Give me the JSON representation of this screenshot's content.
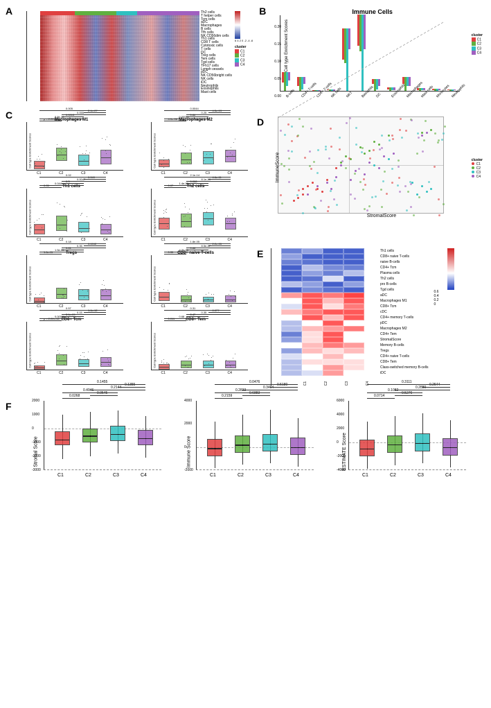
{
  "colors": {
    "C1": "#e04040",
    "C2": "#60b040",
    "C3": "#30c0c0",
    "C4": "#a060c0",
    "heatmap_high": "#c02020",
    "heatmap_mid": "#ffffff",
    "heatmap_low": "#2040a0"
  },
  "panelA": {
    "label": "A",
    "cluster_bar_widths": [
      50,
      60,
      30,
      90
    ],
    "colorbar_ticks": [
      "6",
      "4",
      "2",
      "0",
      "-2",
      "-4",
      "-6"
    ],
    "legend_title_cluster": "cluster",
    "legend_clusters": [
      "C1",
      "C2",
      "C3",
      "C4"
    ],
    "row_labels": [
      "Th2 cells",
      "T helper cells",
      "Tcm cells",
      "aDC",
      "Macrophages",
      "B cells",
      "Tfh cells",
      "NK CD56dim cells",
      "Th1 cells",
      "CD8 T cells",
      "Cytotoxic cells",
      "T cells",
      "DC",
      "Treg cells",
      "Tem cells",
      "Tgd cells",
      "TFh17 cells",
      "Lymph vessels",
      "pDC",
      "NK CD56bright cells",
      "NK cells",
      "iDC",
      "Neutrophils",
      "Eosinophils",
      "Mast cells"
    ]
  },
  "panelB": {
    "label": "B",
    "title": "Immune Cells",
    "ylabel": "Cell type Enrichment Scores",
    "ylim": [
      0,
      0.22
    ],
    "yticks": [
      0.0,
      0.05,
      0.1,
      0.15,
      0.2
    ],
    "categories": [
      "B-cells",
      "CD4+ T-cells",
      "CD8+ T-cells",
      "NK cells",
      "NKT",
      "Basophils",
      "DC",
      "Eosinophils",
      "Macrophages",
      "Mast cells",
      "Monocytes",
      "Neutrophils"
    ],
    "series": [
      "C1",
      "C2",
      "C3",
      "C4"
    ],
    "data": [
      [
        0.03,
        0.055,
        0.04,
        0.025
      ],
      [
        0.025,
        0.04,
        0.035,
        0.02
      ],
      [
        0.003,
        0.003,
        0.003,
        0.003
      ],
      [
        0.003,
        0.005,
        0.005,
        0.004
      ],
      [
        0.09,
        0.1,
        0.18,
        0.06
      ],
      [
        0.09,
        0.105,
        0.22,
        0.1
      ],
      [
        0.015,
        0.035,
        0.03,
        0.02
      ],
      [
        0.005,
        0.01,
        0.008,
        0.008
      ],
      [
        0.02,
        0.04,
        0.025,
        0.025
      ],
      [
        0.005,
        0.008,
        0.006,
        0.005
      ],
      [
        0.004,
        0.006,
        0.005,
        0.004
      ],
      [
        0.003,
        0.005,
        0.004,
        0.003
      ]
    ],
    "legend_title": "cluster"
  },
  "panelC": {
    "label": "C",
    "ylabel": "Cell type Enrichment Scores",
    "xlabels": [
      "C1",
      "C2",
      "C3",
      "C4"
    ],
    "plots": [
      {
        "title": "Macrophages M1",
        "ylim": [
          0,
          0.15
        ],
        "boxes": [
          {
            "q1": 0.005,
            "med": 0.015,
            "q3": 0.03,
            "c": "C1"
          },
          {
            "q1": 0.03,
            "med": 0.05,
            "q3": 0.07,
            "c": "C2"
          },
          {
            "q1": 0.015,
            "med": 0.03,
            "q3": 0.05,
            "c": "C3"
          },
          {
            "q1": 0.02,
            "med": 0.04,
            "q3": 0.065,
            "c": "C4"
          }
        ],
        "pvals": [
          "p < 2.22e-16",
          "8.8e-10",
          "0.0013",
          "0.055",
          "2.4e-07",
          "0.005"
        ]
      },
      {
        "title": "Macrophages M2",
        "ylim": [
          0,
          0.15
        ],
        "boxes": [
          {
            "q1": 0.01,
            "med": 0.02,
            "q3": 0.035,
            "c": "C1"
          },
          {
            "q1": 0.02,
            "med": 0.035,
            "q3": 0.055,
            "c": "C2"
          },
          {
            "q1": 0.02,
            "med": 0.04,
            "q3": 0.06,
            "c": "C3"
          },
          {
            "q1": 0.025,
            "med": 0.045,
            "q3": 0.065,
            "c": "C4"
          }
        ],
        "pvals": [
          "4.0e-08",
          "0.00051",
          "0.86",
          "0.25",
          "4.5e-13",
          "0.0044"
        ]
      },
      {
        "title": "Th1 cells",
        "ylim": [
          0,
          0.08
        ],
        "boxes": [
          {
            "q1": 0.005,
            "med": 0.012,
            "q3": 0.022,
            "c": "C1"
          },
          {
            "q1": 0.01,
            "med": 0.02,
            "q3": 0.035,
            "c": "C2"
          },
          {
            "q1": 0.008,
            "med": 0.015,
            "q3": 0.025,
            "c": "C3"
          },
          {
            "q1": 0.005,
            "med": 0.012,
            "q3": 0.022,
            "c": "C4"
          }
        ],
        "pvals": [
          "0.05",
          "0.044",
          "0.3",
          "0.0047",
          "0.049",
          "0.02"
        ]
      },
      {
        "title": "Th2 cells",
        "ylim": [
          0,
          0.25
        ],
        "boxes": [
          {
            "q1": 0.04,
            "med": 0.07,
            "q3": 0.1,
            "c": "C1"
          },
          {
            "q1": 0.05,
            "med": 0.08,
            "q3": 0.12,
            "c": "C2"
          },
          {
            "q1": 0.06,
            "med": 0.095,
            "q3": 0.13,
            "c": "C3"
          },
          {
            "q1": 0.04,
            "med": 0.07,
            "q3": 0.1,
            "c": "C4"
          }
        ],
        "pvals": [
          "0.07",
          "1.4e-05",
          "0.068",
          "8.1e-10",
          "4.6e-11",
          "2.1e-14"
        ]
      },
      {
        "title": "Tregs",
        "ylim": [
          0,
          0.4
        ],
        "boxes": [
          {
            "q1": 0.005,
            "med": 0.02,
            "q3": 0.05,
            "c": "C1"
          },
          {
            "q1": 0.04,
            "med": 0.08,
            "q3": 0.13,
            "c": "C2"
          },
          {
            "q1": 0.03,
            "med": 0.07,
            "q3": 0.12,
            "c": "C3"
          },
          {
            "q1": 0.03,
            "med": 0.07,
            "q3": 0.12,
            "c": "C4"
          }
        ],
        "pvals": [
          "1.6e-11",
          "1.5e-05",
          "0.81",
          "0.35",
          "0.0092",
          "0.18"
        ]
      },
      {
        "title": "CD8+ naive T-cells",
        "ylim": [
          0,
          0.09
        ],
        "boxes": [
          {
            "q1": 0.005,
            "med": 0.012,
            "q3": 0.022,
            "c": "C1"
          },
          {
            "q1": 0.003,
            "med": 0.008,
            "q3": 0.015,
            "c": "C2"
          },
          {
            "q1": 0.003,
            "med": 0.007,
            "q3": 0.013,
            "c": "C3"
          },
          {
            "q1": 0.003,
            "med": 0.008,
            "q3": 0.015,
            "c": "C4"
          }
        ],
        "pvals": [
          "0.35",
          "4.3e-05",
          "0.88",
          "8.5e-07",
          "2.2e-05",
          "1.8e-05"
        ]
      },
      {
        "title": "CD8+ Tcm",
        "ylim": [
          0,
          0.3
        ],
        "boxes": [
          {
            "q1": 0.005,
            "med": 0.015,
            "q3": 0.03,
            "c": "C1"
          },
          {
            "q1": 0.03,
            "med": 0.06,
            "q3": 0.1,
            "c": "C2"
          },
          {
            "q1": 0.02,
            "med": 0.04,
            "q3": 0.07,
            "c": "C3"
          },
          {
            "q1": 0.02,
            "med": 0.05,
            "q3": 0.08,
            "c": "C4"
          }
        ],
        "pvals": [
          "p < 2.22e-16",
          "0.00095",
          "3.1e-09",
          "0.15",
          "1.6e-12",
          "0.57"
        ]
      },
      {
        "title": "CD8+ Tem",
        "ylim": [
          0,
          0.3
        ],
        "boxes": [
          {
            "q1": 0.005,
            "med": 0.02,
            "q3": 0.04,
            "c": "C1"
          },
          {
            "q1": 0.015,
            "med": 0.035,
            "q3": 0.06,
            "c": "C2"
          },
          {
            "q1": 0.015,
            "med": 0.035,
            "q3": 0.06,
            "c": "C3"
          },
          {
            "q1": 0.015,
            "med": 0.035,
            "q3": 0.06,
            "c": "C4"
          }
        ],
        "pvals": [
          "0.011",
          "0.68",
          "0.47",
          "0.35",
          "0.077",
          "0.31"
        ]
      }
    ]
  },
  "panelD": {
    "label": "D",
    "xlabel": "StromalScore",
    "ylabel": "ImmuneScore",
    "xlim": [
      -1.5,
      2
    ],
    "ylim": [
      -1.5,
      1.8
    ],
    "legend_title": "cluster",
    "legend": [
      "C1",
      "C2",
      "C3",
      "C4"
    ],
    "points": [
      {
        "x": -1.0,
        "y": -0.8,
        "c": "C1"
      },
      {
        "x": -0.9,
        "y": -0.5,
        "c": "C1"
      },
      {
        "x": -1.1,
        "y": -0.9,
        "c": "C1"
      },
      {
        "x": -0.7,
        "y": -0.6,
        "c": "C1"
      },
      {
        "x": -0.5,
        "y": -0.3,
        "c": "C1"
      },
      {
        "x": -1.2,
        "y": -1.0,
        "c": "C1"
      },
      {
        "x": -0.8,
        "y": -0.4,
        "c": "C1"
      },
      {
        "x": -0.3,
        "y": 0.1,
        "c": "C1"
      },
      {
        "x": -1.0,
        "y": -0.6,
        "c": "C1"
      },
      {
        "x": -0.6,
        "y": -0.7,
        "c": "C1"
      },
      {
        "x": 0.2,
        "y": 0.8,
        "c": "C2"
      },
      {
        "x": 0.5,
        "y": 1.0,
        "c": "C2"
      },
      {
        "x": -0.1,
        "y": 0.5,
        "c": "C2"
      },
      {
        "x": 0.8,
        "y": 1.2,
        "c": "C2"
      },
      {
        "x": 0.3,
        "y": 0.6,
        "c": "C2"
      },
      {
        "x": -0.2,
        "y": 0.3,
        "c": "C2"
      },
      {
        "x": 0.6,
        "y": 0.9,
        "c": "C2"
      },
      {
        "x": 1.5,
        "y": 1.3,
        "c": "C2"
      },
      {
        "x": 0.0,
        "y": 0.4,
        "c": "C2"
      },
      {
        "x": 0.4,
        "y": 0.7,
        "c": "C2"
      },
      {
        "x": 1.7,
        "y": 1.4,
        "c": "C2"
      },
      {
        "x": 1.6,
        "y": -0.7,
        "c": "C3"
      },
      {
        "x": 1.5,
        "y": -0.5,
        "c": "C3"
      },
      {
        "x": 1.4,
        "y": -0.8,
        "c": "C3"
      },
      {
        "x": 1.7,
        "y": -0.6,
        "c": "C3"
      },
      {
        "x": 0.5,
        "y": 0.2,
        "c": "C3"
      },
      {
        "x": 0.8,
        "y": 0.4,
        "c": "C3"
      },
      {
        "x": 1.3,
        "y": -0.4,
        "c": "C3"
      },
      {
        "x": -0.3,
        "y": -0.2,
        "c": "C4"
      },
      {
        "x": 0.1,
        "y": 0.0,
        "c": "C4"
      },
      {
        "x": -0.5,
        "y": -0.4,
        "c": "C4"
      },
      {
        "x": 0.4,
        "y": 0.3,
        "c": "C4"
      },
      {
        "x": -0.7,
        "y": -0.5,
        "c": "C4"
      },
      {
        "x": 0.7,
        "y": 0.5,
        "c": "C4"
      },
      {
        "x": -0.2,
        "y": 0.2,
        "c": "C4"
      },
      {
        "x": 0.3,
        "y": -0.1,
        "c": "C4"
      },
      {
        "x": 1.5,
        "y": 1.2,
        "c": "C4"
      },
      {
        "x": -0.9,
        "y": -0.8,
        "c": "C4"
      },
      {
        "x": 0.0,
        "y": -0.3,
        "c": "C4"
      },
      {
        "x": 0.6,
        "y": 0.1,
        "c": "C4"
      },
      {
        "x": 1.6,
        "y": 1.3,
        "c": "C4"
      },
      {
        "x": -0.4,
        "y": -0.6,
        "c": "C4"
      },
      {
        "x": 0.9,
        "y": 0.6,
        "c": "C4"
      }
    ]
  },
  "panelE": {
    "label": "E",
    "columns": [
      "C1",
      "C2",
      "C3",
      "C4"
    ],
    "colorbar_ticks": [
      "0.6",
      "0.4",
      "0.2",
      "0"
    ],
    "rows": [
      {
        "label": "Th1 cells",
        "vals": [
          0.1,
          0.15,
          0.05,
          0.05
        ]
      },
      {
        "label": "CD8+ naive T-cells",
        "vals": [
          0.15,
          0.05,
          0.05,
          0.05
        ]
      },
      {
        "label": "naive B-cells",
        "vals": [
          0.1,
          0.08,
          0.05,
          0.05
        ]
      },
      {
        "label": "CD4+ Tcm",
        "vals": [
          0.05,
          0.2,
          0.12,
          0.1
        ]
      },
      {
        "label": "Plasma cells",
        "vals": [
          0.05,
          0.15,
          0.1,
          0.2
        ]
      },
      {
        "label": "Th2 cells",
        "vals": [
          0.05,
          0.08,
          0.25,
          0.05
        ]
      },
      {
        "label": "pro B-cells",
        "vals": [
          0.2,
          0.15,
          0.05,
          0.15
        ]
      },
      {
        "label": "Tgd cells",
        "vals": [
          0.05,
          0.12,
          0.08,
          0.05
        ]
      },
      {
        "label": "aDC",
        "vals": [
          0.45,
          0.55,
          0.5,
          0.58
        ]
      },
      {
        "label": "Macrophages M1",
        "vals": [
          0.3,
          0.55,
          0.4,
          0.55
        ]
      },
      {
        "label": "CD8+ Tcm",
        "vals": [
          0.25,
          0.55,
          0.35,
          0.5
        ]
      },
      {
        "label": "cDC",
        "vals": [
          0.4,
          0.5,
          0.55,
          0.55
        ]
      },
      {
        "label": "CD4+ memory T-cells",
        "vals": [
          0.3,
          0.55,
          0.4,
          0.55
        ]
      },
      {
        "label": "pDC",
        "vals": [
          0.2,
          0.3,
          0.55,
          0.3
        ]
      },
      {
        "label": "Macrophages M2",
        "vals": [
          0.2,
          0.4,
          0.45,
          0.5
        ]
      },
      {
        "label": "CD4+ Tem",
        "vals": [
          0.1,
          0.35,
          0.55,
          0.3
        ]
      },
      {
        "label": "StromalScore",
        "vals": [
          0.15,
          0.35,
          0.55,
          0.3
        ]
      },
      {
        "label": "Memory B-cells",
        "vals": [
          0.3,
          0.4,
          0.5,
          0.45
        ]
      },
      {
        "label": "Tregs",
        "vals": [
          0.15,
          0.4,
          0.35,
          0.4
        ]
      },
      {
        "label": "CD4+ naive T-cells",
        "vals": [
          0.25,
          0.3,
          0.4,
          0.3
        ]
      },
      {
        "label": "CD8+ Tem",
        "vals": [
          0.2,
          0.35,
          0.35,
          0.35
        ]
      },
      {
        "label": "Class-switched memory B-cells",
        "vals": [
          0.2,
          0.3,
          0.45,
          0.35
        ]
      },
      {
        "label": "iDC",
        "vals": [
          0.2,
          0.25,
          0.45,
          0.3
        ]
      }
    ]
  },
  "panelF": {
    "label": "F",
    "xlabels": [
      "C1",
      "C2",
      "C3",
      "C4"
    ],
    "plots": [
      {
        "ylabel": "Stromal Score",
        "ylim": [
          -3000,
          2000
        ],
        "yticks": [
          -3000,
          -2000,
          -1000,
          0,
          1000,
          2000
        ],
        "boxes": [
          {
            "q1": -1200,
            "med": -800,
            "q3": -200,
            "lo": -2200,
            "hi": 1000,
            "c": "C1"
          },
          {
            "q1": -1000,
            "med": -500,
            "q3": 0,
            "lo": -2000,
            "hi": 1200,
            "c": "C2"
          },
          {
            "q1": -900,
            "med": -400,
            "q3": 200,
            "lo": -1800,
            "hi": 1300,
            "c": "C3"
          },
          {
            "q1": -1200,
            "med": -700,
            "q3": -100,
            "lo": -2100,
            "hi": 900,
            "c": "C4"
          }
        ],
        "pvals": [
          "0.0268",
          "0.0545",
          "0.4946",
          "0.2144",
          "0.1355",
          "0.1455"
        ]
      },
      {
        "ylabel": "Immune Score",
        "ylim": [
          -2000,
          4000
        ],
        "yticks": [
          -2000,
          0,
          2000,
          4000
        ],
        "boxes": [
          {
            "q1": -800,
            "med": -100,
            "q3": 700,
            "lo": -1800,
            "hi": 2200,
            "c": "C1"
          },
          {
            "q1": -500,
            "med": 200,
            "q3": 1000,
            "lo": -1500,
            "hi": 2800,
            "c": "C2"
          },
          {
            "q1": -400,
            "med": 300,
            "q3": 1100,
            "lo": -1400,
            "hi": 3200,
            "c": "C3"
          },
          {
            "q1": -700,
            "med": 0,
            "q3": 800,
            "lo": -1700,
            "hi": 2500,
            "c": "C4"
          }
        ],
        "pvals": [
          "0.2159",
          "0.6883",
          "0.2833",
          "0.3494",
          "0.5180",
          "0.0476"
        ]
      },
      {
        "ylabel": "ESTIMATE Score",
        "ylim": [
          -4000,
          6000
        ],
        "yticks": [
          -4000,
          -2000,
          0,
          2000,
          4000,
          6000
        ],
        "boxes": [
          {
            "q1": -2000,
            "med": -900,
            "q3": 400,
            "lo": -3800,
            "hi": 3000,
            "c": "C1"
          },
          {
            "q1": -1500,
            "med": -300,
            "q3": 1000,
            "lo": -3300,
            "hi": 3800,
            "c": "C2"
          },
          {
            "q1": -1300,
            "med": -100,
            "q3": 1300,
            "lo": -3000,
            "hi": 4200,
            "c": "C3"
          },
          {
            "q1": -1900,
            "med": -700,
            "q3": 600,
            "lo": -3600,
            "hi": 3200,
            "c": "C4"
          }
        ],
        "pvals": [
          "0.0714",
          "0.5276",
          "0.1082",
          "0.2880",
          "0.2544",
          "0.3111"
        ]
      }
    ]
  }
}
